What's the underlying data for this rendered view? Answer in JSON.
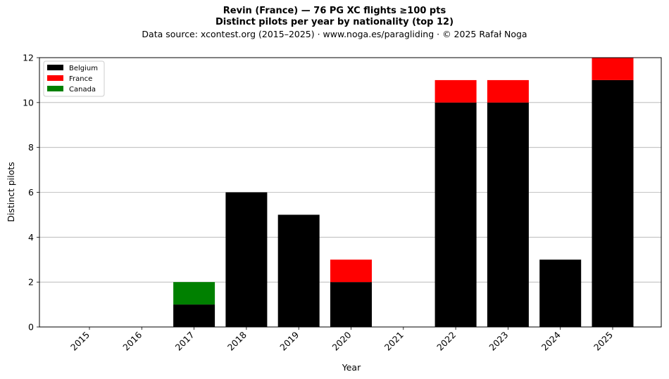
{
  "chart_data": {
    "type": "bar",
    "stacked": true,
    "title": "Revin (France)  —  76 PG XC flights ≥100 pts",
    "subtitle": "Distinct pilots per year by nationality (top 12)",
    "source_note": "Data source: xcontest.org (2015–2025)  ·  www.noga.es/paragliding  ·  © 2025 Rafał Noga",
    "xlabel": "Year",
    "ylabel": "Distinct pilots",
    "categories": [
      "2015",
      "2016",
      "2017",
      "2018",
      "2019",
      "2020",
      "2021",
      "2022",
      "2023",
      "2024",
      "2025"
    ],
    "ylim": [
      0,
      12
    ],
    "yticks": [
      0,
      2,
      4,
      6,
      8,
      10,
      12
    ],
    "grid": "horizontal",
    "legend_position": "top-left",
    "series": [
      {
        "name": "Belgium",
        "color": "#000000",
        "values": [
          0,
          0,
          1,
          6,
          5,
          2,
          0,
          10,
          10,
          3,
          11
        ]
      },
      {
        "name": "France",
        "color": "#ff0000",
        "values": [
          0,
          0,
          0,
          0,
          0,
          1,
          0,
          1,
          1,
          0,
          1
        ]
      },
      {
        "name": "Canada",
        "color": "#008000",
        "values": [
          0,
          0,
          1,
          0,
          0,
          0,
          0,
          0,
          0,
          0,
          0
        ]
      }
    ]
  }
}
